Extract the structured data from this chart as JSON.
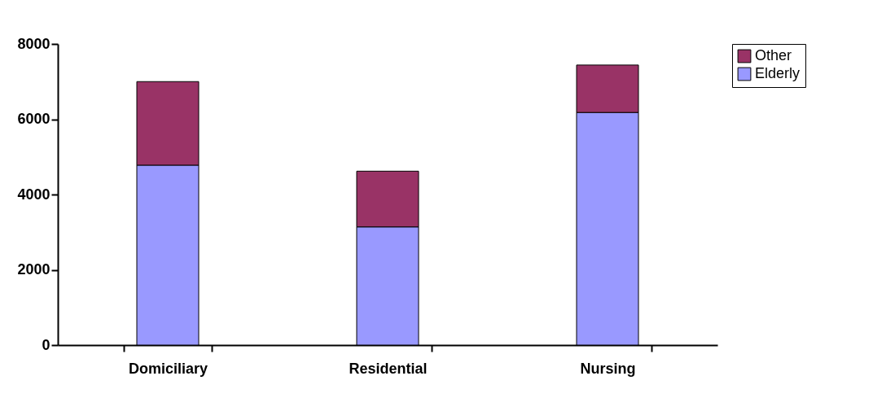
{
  "chart_data": {
    "type": "bar",
    "stacked": true,
    "categories": [
      "Domiciliary",
      "Residential",
      "Nursing"
    ],
    "series": [
      {
        "name": "Elderly",
        "color": "#9999ff",
        "values": [
          4780,
          3140,
          6180
        ]
      },
      {
        "name": "Other",
        "color": "#993366",
        "values": [
          2220,
          1480,
          1260
        ]
      }
    ],
    "ylim": [
      0,
      8000
    ],
    "yticks": [
      0,
      2000,
      4000,
      6000,
      8000
    ],
    "grid": false,
    "legend": "right"
  }
}
